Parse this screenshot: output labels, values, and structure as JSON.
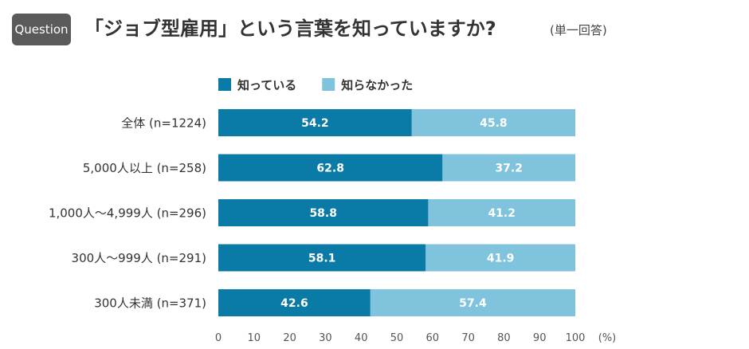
{
  "header": {
    "badge": "Question",
    "title": "「ジョブ型雇用」という言葉を知っていますか?",
    "subtitle": "(単一回答)"
  },
  "chart_data": {
    "type": "bar",
    "orientation": "horizontal",
    "stacked": true,
    "categories": [
      "全体 (n=1224)",
      "5,000人以上 (n=258)",
      "1,000人〜4,999人 (n=296)",
      "300人〜999人 (n=291)",
      "300人未満 (n=371)"
    ],
    "series": [
      {
        "name": "知っている",
        "values": [
          54.2,
          62.8,
          58.8,
          58.1,
          42.6
        ],
        "color": "#0a7aa6"
      },
      {
        "name": "知らなかった",
        "values": [
          45.8,
          37.2,
          41.2,
          41.9,
          57.4
        ],
        "color": "#7fc3dc"
      }
    ],
    "xlim": [
      0,
      100
    ],
    "xticks": [
      0,
      10,
      20,
      30,
      40,
      50,
      60,
      70,
      80,
      90,
      100
    ],
    "xunit": "(%)",
    "legend_position": "top",
    "grid": false
  }
}
